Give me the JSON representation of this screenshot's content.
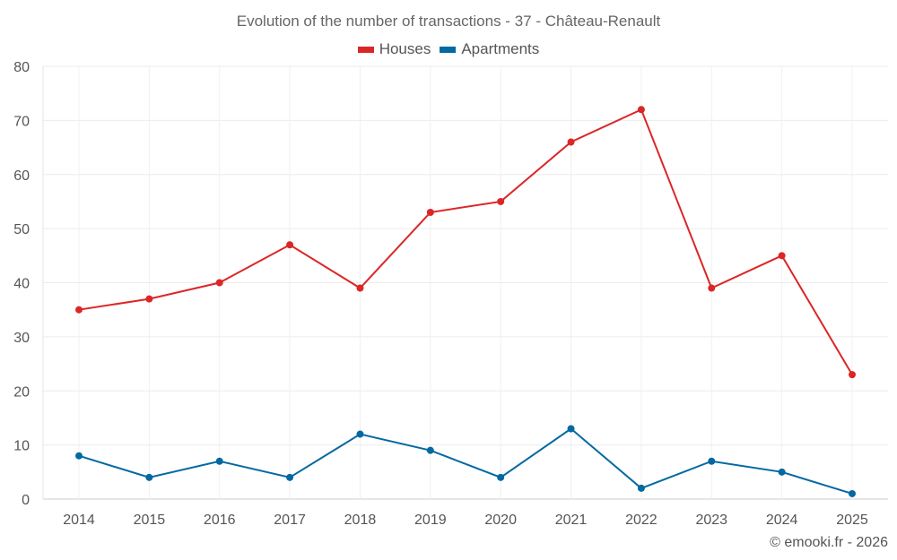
{
  "chart_data": {
    "type": "line",
    "title": "Evolution of the number of transactions - 37 - Château-Renault",
    "categories": [
      "2014",
      "2015",
      "2016",
      "2017",
      "2018",
      "2019",
      "2020",
      "2021",
      "2022",
      "2023",
      "2024",
      "2025"
    ],
    "series": [
      {
        "name": "Houses",
        "color": "#dc2626",
        "values": [
          35,
          37,
          40,
          47,
          39,
          53,
          55,
          66,
          72,
          39,
          45,
          23
        ]
      },
      {
        "name": "Apartments",
        "color": "#0369a1",
        "values": [
          8,
          4,
          7,
          4,
          12,
          9,
          4,
          13,
          2,
          7,
          5,
          1
        ]
      }
    ],
    "yticks": [
      0,
      10,
      20,
      30,
      40,
      50,
      60,
      70,
      80
    ],
    "ylim": [
      0,
      80
    ],
    "grid": true,
    "legend_position": "top-center",
    "xlabel": "",
    "ylabel": ""
  },
  "credit": "© emooki.fr - 2026"
}
